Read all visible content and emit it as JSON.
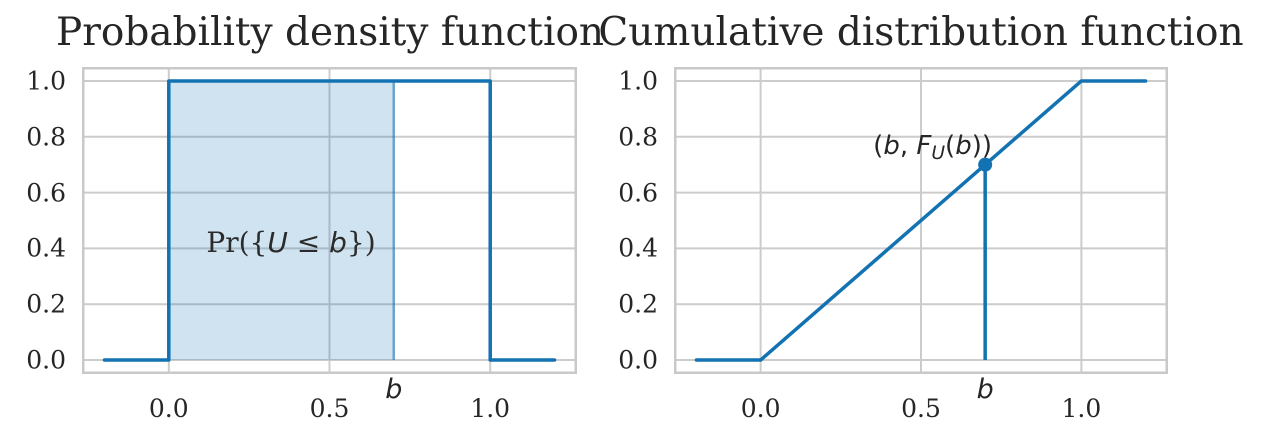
{
  "figure": {
    "accent_color": "#1272b2",
    "fill_color": "rgba(18,114,178,0.2)",
    "grid_color": "#cccccc",
    "frame_color": "#c9c9c9",
    "text_color": "#262626"
  },
  "chart_data": [
    {
      "id": "pdf",
      "type": "line",
      "title": "Probability density function",
      "x": [
        -0.2,
        0.0,
        0.0,
        1.0,
        1.0,
        1.2
      ],
      "y": [
        0.0,
        0.0,
        1.0,
        1.0,
        0.0,
        0.0
      ],
      "xlim": [
        -0.27,
        1.27
      ],
      "ylim": [
        -0.05,
        1.05
      ],
      "xticks": [
        0.0,
        0.5,
        1.0
      ],
      "xtick_labels": [
        "0.0",
        "0.5",
        "1.0"
      ],
      "yticks": [
        0.0,
        0.2,
        0.4,
        0.6,
        0.8,
        1.0
      ],
      "ytick_labels": [
        "0.0",
        "0.2",
        "0.4",
        "0.6",
        "0.8",
        "1.0"
      ],
      "grid": true,
      "legend": null,
      "b": 0.7,
      "b_label": "b",
      "shaded_region": {
        "x_from": 0.0,
        "x_to": 0.7,
        "y_from": 0.0,
        "y_to": 1.0,
        "label": "Pr({U ≤ b})",
        "label_parts": {
          "p1": "Pr({",
          "u": "U",
          "p2": " ≤ ",
          "b": "b",
          "p3": "})"
        }
      }
    },
    {
      "id": "cdf",
      "type": "line",
      "title": "Cumulative distribution function",
      "x": [
        -0.2,
        0.0,
        1.0,
        1.2
      ],
      "y": [
        0.0,
        0.0,
        1.0,
        1.0
      ],
      "xlim": [
        -0.27,
        1.27
      ],
      "ylim": [
        -0.05,
        1.05
      ],
      "xticks": [
        0.0,
        0.5,
        1.0
      ],
      "xtick_labels": [
        "0.0",
        "0.5",
        "1.0"
      ],
      "yticks": [
        0.0,
        0.2,
        0.4,
        0.6,
        0.8,
        1.0
      ],
      "ytick_labels": [
        "0.0",
        "0.2",
        "0.4",
        "0.6",
        "0.8",
        "1.0"
      ],
      "grid": true,
      "legend": null,
      "b": 0.7,
      "b_label": "b",
      "point": {
        "x": 0.7,
        "y": 0.7,
        "label": "(b, F_U(b))",
        "label_parts": {
          "p1": "(",
          "b1": "b",
          "p2": ", ",
          "f": "F",
          "sub": "U",
          "p3": "(",
          "b2": "b",
          "p4": "))"
        }
      },
      "vline": {
        "x": 0.7,
        "y_from": 0.0,
        "y_to": 0.7
      }
    }
  ]
}
